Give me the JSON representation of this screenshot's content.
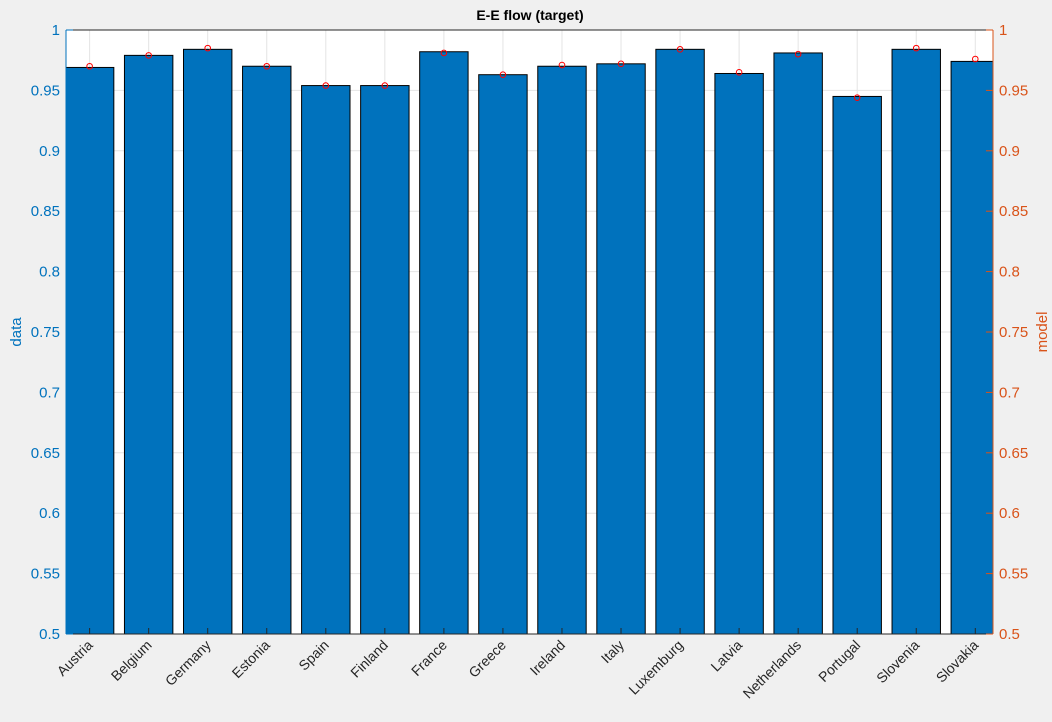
{
  "chart_data": {
    "type": "bar",
    "title": "E-E flow (target)",
    "categories": [
      "Austria",
      "Belgium",
      "Germany",
      "Estonia",
      "Spain",
      "Finland",
      "France",
      "Greece",
      "Ireland",
      "Italy",
      "Luxemburg",
      "Latvia",
      "Netherlands",
      "Portugal",
      "Slovenia",
      "Slovakia"
    ],
    "series": [
      {
        "name": "data",
        "type": "bar",
        "axis": "left",
        "color": "#0072bd",
        "values": [
          0.969,
          0.979,
          0.984,
          0.97,
          0.954,
          0.954,
          0.982,
          0.963,
          0.97,
          0.972,
          0.984,
          0.964,
          0.981,
          0.945,
          0.984,
          0.974
        ]
      },
      {
        "name": "model",
        "type": "scatter",
        "axis": "right",
        "color": "#ff0000",
        "values": [
          0.97,
          0.979,
          0.985,
          0.97,
          0.954,
          0.954,
          0.981,
          0.963,
          0.971,
          0.972,
          0.984,
          0.965,
          0.98,
          0.944,
          0.985,
          0.976
        ]
      }
    ],
    "ylabel_left": "data",
    "ylabel_right": "model",
    "ylim": [
      0.5,
      1
    ],
    "yticks": [
      0.5,
      0.55,
      0.6,
      0.65,
      0.7,
      0.75,
      0.8,
      0.85,
      0.9,
      0.95,
      1
    ],
    "ytick_labels": [
      "0.5",
      "0.55",
      "0.6",
      "0.65",
      "0.7",
      "0.75",
      "0.8",
      "0.85",
      "0.9",
      "0.95",
      "1"
    ],
    "grid": true,
    "left_axis_color": "#0072bd",
    "right_axis_color": "#d95319",
    "bar_edge_color": "#000000"
  }
}
